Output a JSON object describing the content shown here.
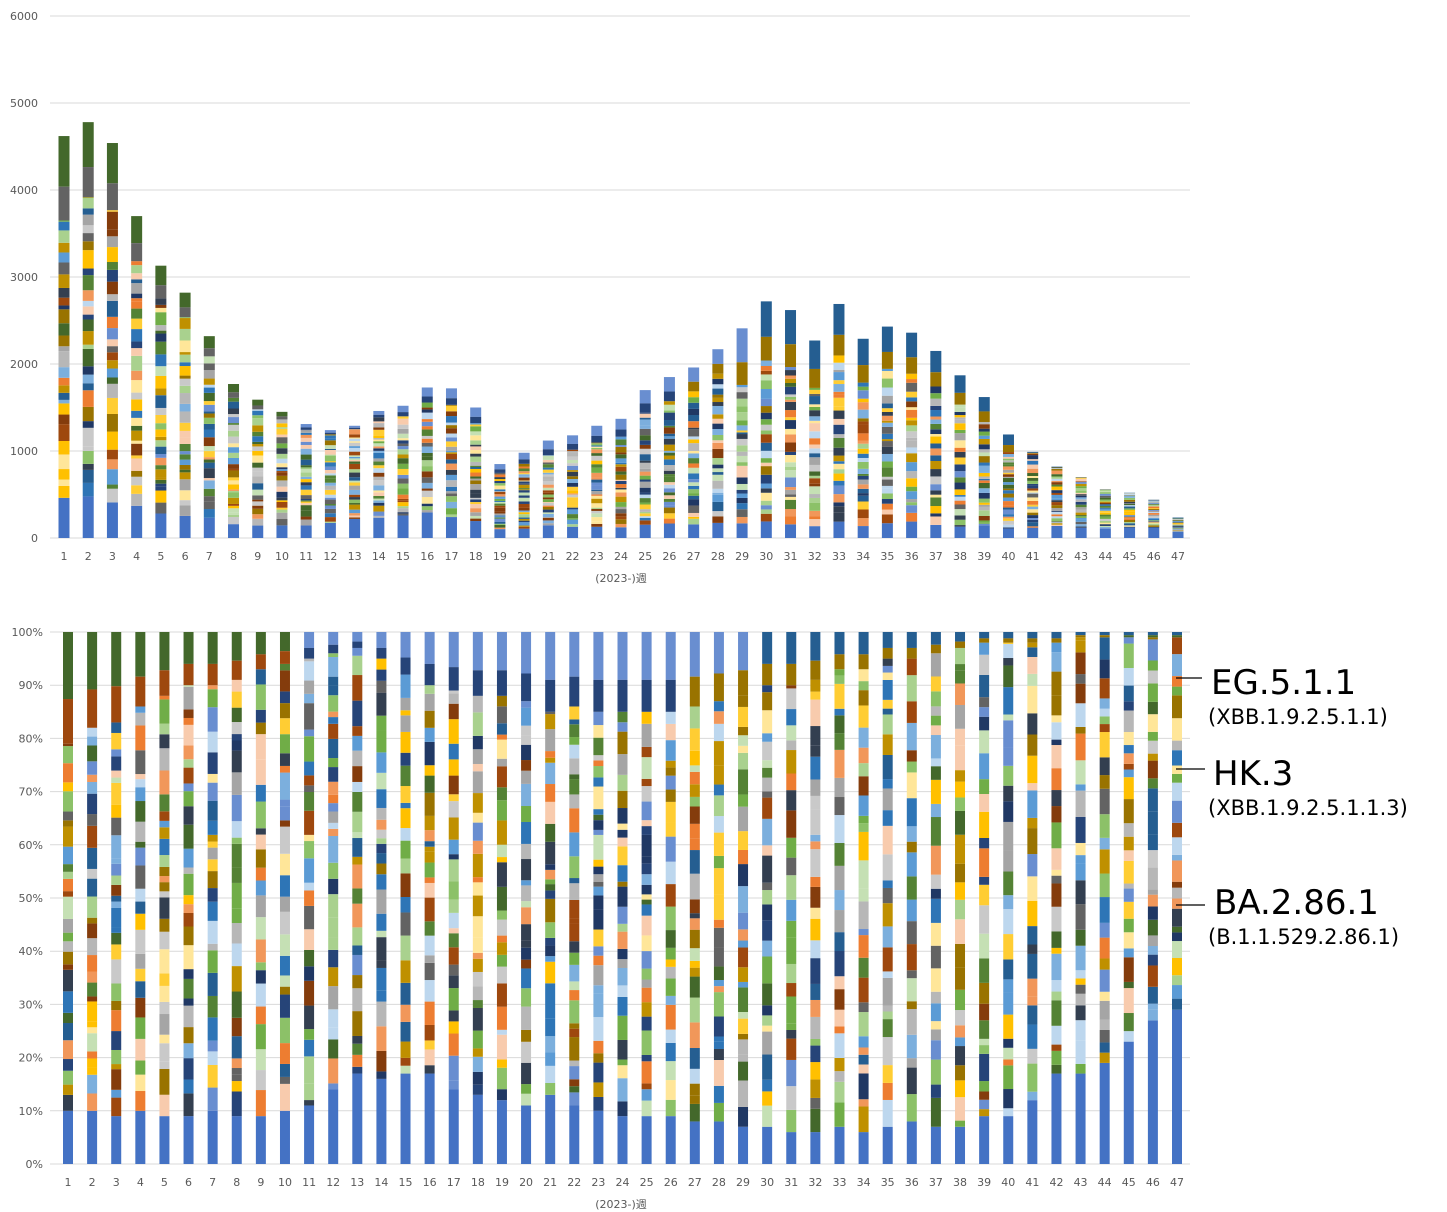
{
  "palette": [
    "#4472c4",
    "#ed7d31",
    "#a5a5a5",
    "#ffc000",
    "#5b9bd5",
    "#70ad47",
    "#264478",
    "#9e480e",
    "#636363",
    "#997300",
    "#255e91",
    "#43682b",
    "#698ed0",
    "#f1975a",
    "#b7b7b7",
    "#ffcd33",
    "#7cafdd",
    "#8cc168",
    "#333f50",
    "#843c0c",
    "#c9c9c9",
    "#ffe699",
    "#bdd7ee",
    "#c5e0b4",
    "#f8cbad",
    "#a9d18e",
    "#2e75b6",
    "#548235",
    "#bf9000",
    "#203864"
  ],
  "chart_data": [
    {
      "type": "bar",
      "stacked": true,
      "title": "",
      "xlabel": "(2023-)週",
      "ylabel": "",
      "ylim": [
        0,
        6000
      ],
      "yticks": [
        "0",
        "1000",
        "2000",
        "3000",
        "4000",
        "5000",
        "6000"
      ],
      "grid": true,
      "legend": "none",
      "categories": [
        "1",
        "2",
        "3",
        "4",
        "5",
        "6",
        "7",
        "8",
        "9",
        "10",
        "11",
        "12",
        "13",
        "14",
        "15",
        "16",
        "17",
        "18",
        "19",
        "20",
        "21",
        "22",
        "23",
        "24",
        "25",
        "26",
        "27",
        "28",
        "29",
        "30",
        "31",
        "32",
        "33",
        "34",
        "35",
        "36",
        "37",
        "38",
        "39",
        "40",
        "41",
        "42",
        "43",
        "44",
        "45",
        "46",
        "47"
      ],
      "totals": [
        4620,
        4780,
        4540,
        3700,
        3130,
        2820,
        2320,
        1770,
        1590,
        1450,
        1310,
        1240,
        1290,
        1460,
        1520,
        1730,
        1720,
        1500,
        850,
        980,
        1120,
        1180,
        1290,
        1370,
        1700,
        1850,
        1960,
        2170,
        2410,
        2720,
        2620,
        2270,
        2690,
        2290,
        2430,
        2360,
        2150,
        1870,
        1620,
        1190,
        990,
        820,
        700,
        560,
        520,
        440,
        240
      ]
    },
    {
      "type": "bar",
      "stacked": true,
      "percent": true,
      "title": "",
      "xlabel": "(2023-)週",
      "ylabel": "",
      "ylim": [
        0,
        100
      ],
      "yticks": [
        "0%",
        "10%",
        "20%",
        "30%",
        "40%",
        "50%",
        "60%",
        "70%",
        "80%",
        "90%",
        "100%"
      ],
      "grid": true,
      "legend": "none",
      "categories": [
        "1",
        "2",
        "3",
        "4",
        "5",
        "6",
        "7",
        "8",
        "9",
        "10",
        "11",
        "12",
        "13",
        "14",
        "15",
        "16",
        "17",
        "18",
        "19",
        "20",
        "21",
        "22",
        "23",
        "24",
        "25",
        "26",
        "27",
        "28",
        "29",
        "30",
        "31",
        "32",
        "33",
        "34",
        "35",
        "36",
        "37",
        "38",
        "39",
        "40",
        "41",
        "42",
        "43",
        "44",
        "45",
        "46",
        "47"
      ],
      "bottom_share_percent": [
        10,
        10,
        9,
        10,
        9,
        9,
        10,
        9,
        9,
        10,
        11,
        14,
        17,
        16,
        17,
        17,
        14,
        13,
        12,
        11,
        13,
        11,
        10,
        9,
        9,
        9,
        8,
        8,
        7,
        7,
        6,
        6,
        7,
        6,
        7,
        8,
        7,
        7,
        9,
        9,
        12,
        17,
        17,
        19,
        23,
        27,
        29
      ],
      "top_share_percent": [
        21,
        18,
        17,
        14,
        12,
        10,
        10,
        9,
        7,
        6,
        5,
        4,
        3,
        5,
        8,
        10,
        11,
        12,
        12,
        13,
        15,
        14,
        15,
        15,
        15,
        15,
        14,
        13,
        12,
        10,
        10,
        9,
        7,
        7,
        5,
        5,
        4,
        3,
        2,
        2,
        2,
        2,
        1,
        1,
        1,
        1,
        1
      ]
    }
  ],
  "annotations": [
    {
      "name": "EG.5.1.1",
      "sub": "(XBB.1.9.2.5.1.1)"
    },
    {
      "name": "HK.3",
      "sub": "(XBB.1.9.2.5.1.1.3)"
    },
    {
      "name": "BA.2.86.1",
      "sub": "(B.1.1.529.2.86.1)"
    }
  ]
}
